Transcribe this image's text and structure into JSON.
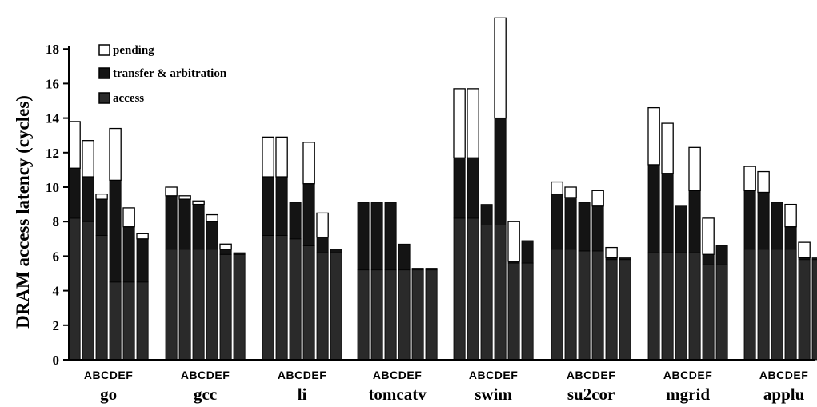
{
  "chart_data": {
    "type": "bar",
    "stacked": true,
    "ylabel": "DRAM access latency (cycles)",
    "ylim": [
      0,
      18
    ],
    "yticks": [
      0,
      2,
      4,
      6,
      8,
      10,
      12,
      14,
      16,
      18
    ],
    "configs": [
      "A",
      "B",
      "C",
      "D",
      "E",
      "F"
    ],
    "config_label": "ABCDEF",
    "benchmarks": [
      "go",
      "gcc",
      "li",
      "tomcatv",
      "swim",
      "su2cor",
      "mgrid",
      "applu"
    ],
    "legend": [
      "pending",
      "transfer & arbitration",
      "access"
    ],
    "legend_position": "top-left",
    "colors": {
      "pending": "#ffffff",
      "transfer": "#141414",
      "access": "#2a2a2a",
      "outline": "#000000"
    },
    "series": [
      {
        "name": "access",
        "values": [
          [
            8.2,
            8.0,
            7.2,
            4.5,
            4.5,
            4.5
          ],
          [
            6.4,
            6.4,
            6.4,
            6.4,
            6.1,
            6.1
          ],
          [
            7.2,
            7.2,
            7.0,
            6.6,
            6.2,
            6.2
          ],
          [
            5.2,
            5.2,
            5.2,
            5.2,
            5.2,
            5.2
          ],
          [
            8.2,
            8.2,
            7.8,
            7.8,
            5.6,
            5.6
          ],
          [
            6.4,
            6.4,
            6.3,
            6.3,
            5.8,
            5.8
          ],
          [
            6.2,
            6.2,
            6.2,
            6.2,
            5.5,
            5.5
          ],
          [
            6.4,
            6.4,
            6.4,
            6.4,
            5.8,
            5.8
          ]
        ]
      },
      {
        "name": "transfer & arbitration",
        "values": [
          [
            2.9,
            2.6,
            2.1,
            5.9,
            3.2,
            2.5
          ],
          [
            3.1,
            2.9,
            2.6,
            1.6,
            0.3,
            0.1
          ],
          [
            3.4,
            3.4,
            2.1,
            3.6,
            0.9,
            0.2
          ],
          [
            3.9,
            3.9,
            3.9,
            1.5,
            0.1,
            0.1
          ],
          [
            3.5,
            3.5,
            1.2,
            6.2,
            0.1,
            1.3
          ],
          [
            3.2,
            3.0,
            2.8,
            2.6,
            0.1,
            0.1
          ],
          [
            5.1,
            4.6,
            2.7,
            3.6,
            0.6,
            1.1
          ],
          [
            3.4,
            3.3,
            2.7,
            1.3,
            0.1,
            0.1
          ]
        ]
      },
      {
        "name": "pending",
        "values": [
          [
            2.7,
            2.1,
            0.3,
            3.0,
            1.1,
            0.3
          ],
          [
            0.5,
            0.2,
            0.2,
            0.4,
            0.3,
            0.0
          ],
          [
            2.3,
            2.3,
            0.0,
            2.4,
            1.4,
            0.0
          ],
          [
            0.0,
            0.0,
            0.0,
            0.0,
            0.0,
            0.0
          ],
          [
            4.0,
            4.0,
            0.0,
            5.8,
            2.3,
            0.0
          ],
          [
            0.7,
            0.6,
            0.0,
            0.9,
            0.6,
            0.0
          ],
          [
            3.3,
            2.9,
            0.0,
            2.5,
            2.1,
            0.0
          ],
          [
            1.4,
            1.2,
            0.0,
            1.3,
            0.9,
            0.0
          ]
        ]
      }
    ]
  }
}
